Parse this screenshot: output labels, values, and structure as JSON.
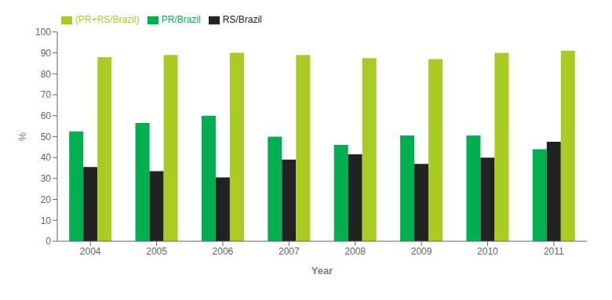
{
  "chart_data": {
    "type": "bar",
    "categories": [
      "2004",
      "2005",
      "2006",
      "2007",
      "2008",
      "2009",
      "2010",
      "2011"
    ],
    "series": [
      {
        "name": "PR/Brazil",
        "color": "#00b050",
        "values": [
          52.5,
          56.5,
          60.0,
          50.0,
          46.0,
          50.5,
          50.5,
          44.0
        ]
      },
      {
        "name": "RS/Brazil",
        "color": "#222222",
        "values": [
          35.5,
          33.5,
          30.5,
          39.0,
          41.5,
          37.0,
          40.0,
          47.5
        ]
      },
      {
        "name": "(PR+RS/Brazil)",
        "color": "#aacc22",
        "values": [
          88.0,
          89.0,
          90.0,
          89.0,
          87.5,
          87.0,
          90.0,
          91.0
        ]
      }
    ],
    "xlabel": "Year",
    "ylabel": "%",
    "ylim": [
      0,
      100
    ],
    "yticks": [
      0,
      10,
      20,
      30,
      40,
      50,
      60,
      70,
      80,
      90,
      100
    ],
    "grid": false,
    "legend": "upper left"
  }
}
